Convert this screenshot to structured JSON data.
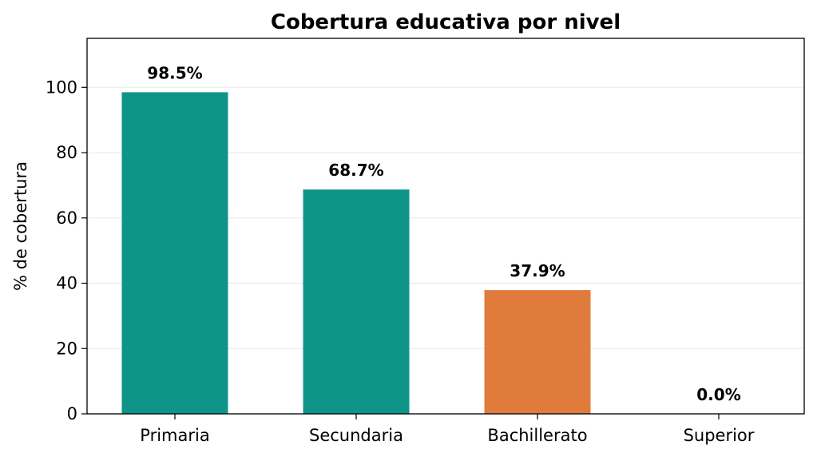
{
  "chart_data": {
    "type": "bar",
    "title": "Cobertura educativa por nivel",
    "xlabel": "",
    "ylabel": "% de cobertura",
    "categories": [
      "Primaria",
      "Secundaria",
      "Bachillerato",
      "Superior"
    ],
    "values": [
      98.5,
      68.7,
      37.9,
      0.0
    ],
    "value_labels": [
      "98.5%",
      "68.7%",
      "37.9%",
      "0.0%"
    ],
    "colors": [
      "#0e9488",
      "#0e9488",
      "#e07b3c",
      "#0e9488"
    ],
    "ylim": [
      0,
      115
    ],
    "yticks": [
      0,
      20,
      40,
      60,
      80,
      100
    ],
    "ytick_labels": [
      "0",
      "20",
      "40",
      "60",
      "80",
      "100"
    ],
    "grid": "y"
  }
}
